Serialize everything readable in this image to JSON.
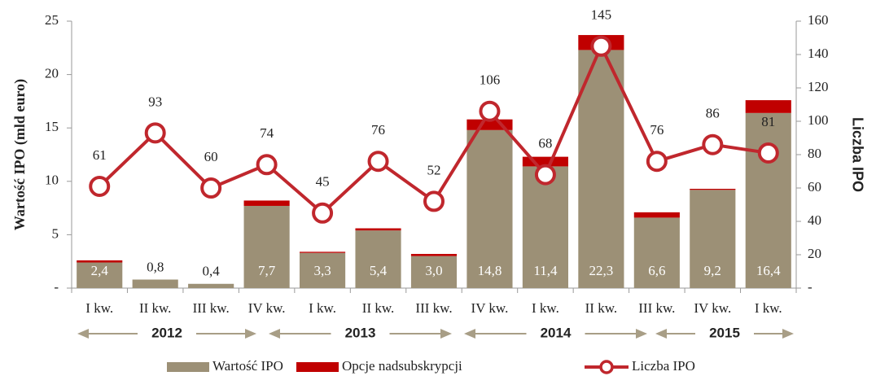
{
  "chart_data": {
    "type": "bar-line",
    "y_label": "Wartość IPO (mld euro)",
    "y2_label": "Liczba IPO",
    "categories": [
      "I kw.",
      "II kw.",
      "III kw.",
      "IV kw.",
      "I kw.",
      "II kw.",
      "III kw.",
      "IV kw.",
      "I kw.",
      "II kw.",
      "III kw.",
      "IV kw.",
      "I kw."
    ],
    "years": [
      "2012",
      "2013",
      "2014",
      "2015"
    ],
    "series": [
      {
        "name": "Wartość IPO",
        "color": "#9c9076",
        "values": [
          2.4,
          0.8,
          0.4,
          7.7,
          3.3,
          5.4,
          3.0,
          14.8,
          11.4,
          22.3,
          6.6,
          9.2,
          16.4
        ],
        "value_labels": [
          "2,4",
          "0,8",
          "0,4",
          "7,7",
          "3,3",
          "5,4",
          "3,0",
          "14,8",
          "11,4",
          "22,3",
          "6,6",
          "9,2",
          "16,4"
        ]
      },
      {
        "name": "Opcje nadsubskrypcji",
        "color": "#c00000",
        "values": [
          0.2,
          0,
          0,
          0.5,
          0.1,
          0.2,
          0.2,
          1.0,
          0.9,
          1.4,
          0.5,
          0.1,
          1.2
        ]
      },
      {
        "name": "Liczba IPO",
        "color": "#c0272d",
        "axis": "y2",
        "values": [
          61,
          93,
          60,
          74,
          45,
          76,
          52,
          106,
          68,
          145,
          76,
          86,
          81
        ]
      }
    ],
    "ylim": [
      0,
      25
    ],
    "yticks": [
      {
        "value": 0,
        "label": "-"
      },
      5,
      10,
      15,
      20,
      25
    ],
    "y2lim": [
      0,
      160
    ],
    "y2ticks": [
      {
        "value": 0,
        "label": "-"
      },
      20,
      40,
      60,
      80,
      100,
      120,
      140,
      160
    ]
  }
}
